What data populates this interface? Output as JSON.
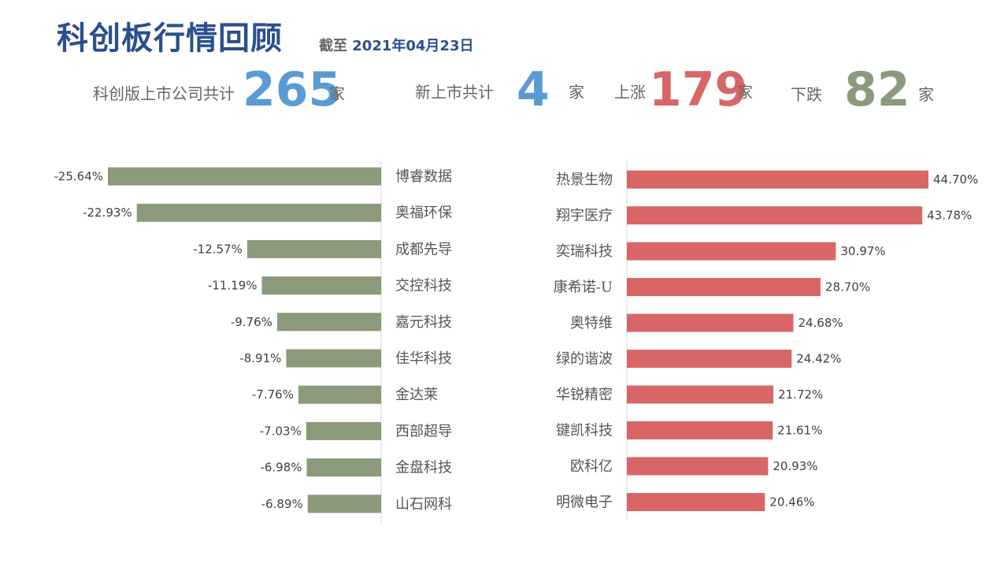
{
  "header": {
    "title": "科创板行情回顾",
    "asof_label": "截至",
    "asof_date": "2021年04月23日"
  },
  "stats": {
    "total_label": "科创版上市公司共计",
    "total_value": "265",
    "total_unit": "家",
    "new_label": "新上市共计",
    "new_value": "4",
    "new_unit": "家",
    "up_label": "上涨",
    "up_value": "179",
    "up_unit": "家",
    "down_label": "下跌",
    "down_value": "82",
    "down_unit": "家"
  },
  "colors": {
    "title": "#2b4f8e",
    "total": "#5b9bd5",
    "new": "#5b9bd5",
    "up": "#d96666",
    "down": "#8a9a7b",
    "loser_bar": "#8a9a7b",
    "gainer_bar": "#d96666"
  },
  "chart_data": [
    {
      "type": "bar",
      "orientation": "horizontal",
      "categories": [
        "博睿数据",
        "奥福环保",
        "成都先导",
        "交控科技",
        "嘉元科技",
        "佳华科技",
        "金达莱",
        "西部超导",
        "金盘科技",
        "山石网科"
      ],
      "values": [
        -25.64,
        -22.93,
        -12.57,
        -11.19,
        -9.76,
        -8.91,
        -7.76,
        -7.03,
        -6.98,
        -6.89
      ],
      "value_labels": [
        "-25.64%",
        "-22.93%",
        "-12.57%",
        "-11.19%",
        "-9.76%",
        "-8.91%",
        "-7.76%",
        "-7.03%",
        "-6.98%",
        "-6.89%"
      ],
      "xlim": [
        -27,
        0
      ],
      "grid": false,
      "legend": "none"
    },
    {
      "type": "bar",
      "orientation": "horizontal",
      "categories": [
        "热景生物",
        "翔宇医疗",
        "奕瑞科技",
        "康希诺-U",
        "奥特维",
        "绿的谐波",
        "华锐精密",
        "键凯科技",
        "欧科亿",
        "明微电子"
      ],
      "values": [
        44.7,
        43.78,
        30.97,
        28.7,
        24.68,
        24.42,
        21.72,
        21.61,
        20.93,
        20.46
      ],
      "value_labels": [
        "44.70%",
        "43.78%",
        "30.97%",
        "28.70%",
        "24.68%",
        "24.42%",
        "21.72%",
        "21.61%",
        "20.93%",
        "20.46%"
      ],
      "xlim": [
        0,
        47
      ],
      "grid": false,
      "legend": "none"
    }
  ]
}
